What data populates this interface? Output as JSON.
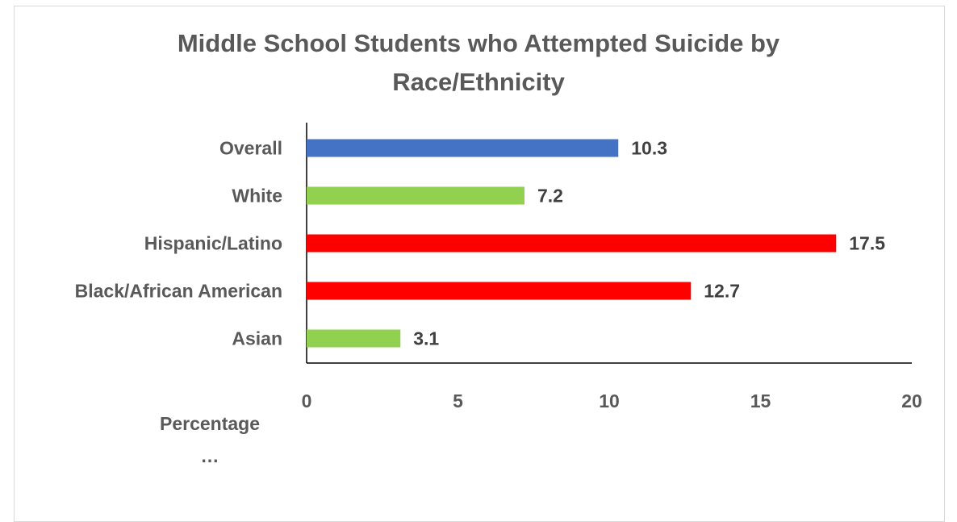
{
  "chart_data": {
    "type": "bar",
    "orientation": "horizontal",
    "title": "Middle School Students who Attempted Suicide by\nRace/Ethnicity",
    "xlabel": "Percentage",
    "xlabel_ellipsis": "…",
    "ylabel": "",
    "categories": [
      "Overall",
      "White",
      "Hispanic/Latino",
      "Black/African American",
      "Asian"
    ],
    "values": [
      10.3,
      7.2,
      17.5,
      12.7,
      3.1
    ],
    "value_labels": [
      "10.3",
      "7.2",
      "17.5",
      "12.7",
      "3.1"
    ],
    "bar_colors": [
      "#4472c4",
      "#92d050",
      "#ff0000",
      "#ff0000",
      "#92d050"
    ],
    "xlim": [
      0,
      20
    ],
    "xticks": [
      0,
      5,
      10,
      15,
      20
    ],
    "xtick_labels": [
      "0",
      "5",
      "10",
      "15",
      "20"
    ],
    "grid": false,
    "legend": "none"
  }
}
